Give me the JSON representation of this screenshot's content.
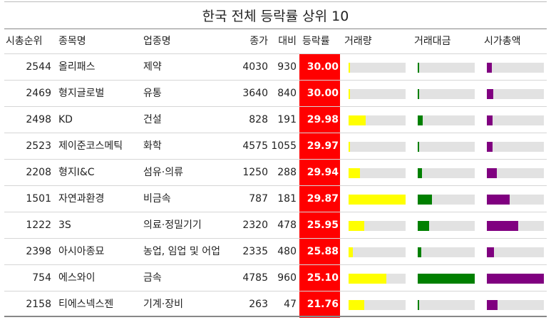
{
  "chart_data": {
    "type": "table",
    "title": "한국 전체 등락률 상위 10",
    "columns": [
      "시총순위",
      "종목명",
      "업종명",
      "종가",
      "대비",
      "등락률",
      "거래량",
      "거래대금",
      "시가총액"
    ],
    "rows": [
      {
        "rank": "2544",
        "name": "올리패스",
        "sector": "제약",
        "close": "4030",
        "diff": "930",
        "pct": "30.00",
        "volume": 0.02,
        "value": 0.02,
        "mcap": 0.09
      },
      {
        "rank": "2469",
        "name": "형지글로벌",
        "sector": "유통",
        "close": "3640",
        "diff": "840",
        "pct": "30.00",
        "volume": 0.02,
        "value": 0.01,
        "mcap": 0.11
      },
      {
        "rank": "2498",
        "name": "KD",
        "sector": "건설",
        "close": "828",
        "diff": "191",
        "pct": "29.98",
        "volume": 0.3,
        "value": 0.09,
        "mcap": 0.1
      },
      {
        "rank": "2523",
        "name": "제이준코스메틱",
        "sector": "화학",
        "close": "4575",
        "diff": "1055",
        "pct": "29.97",
        "volume": 0.02,
        "value": 0.02,
        "mcap": 0.1
      },
      {
        "rank": "2208",
        "name": "형지I&C",
        "sector": "섬유·의류",
        "close": "1250",
        "diff": "288",
        "pct": "29.94",
        "volume": 0.2,
        "value": 0.08,
        "mcap": 0.18
      },
      {
        "rank": "1501",
        "name": "자연과환경",
        "sector": "비금속",
        "close": "787",
        "diff": "181",
        "pct": "29.87",
        "volume": 1.0,
        "value": 0.25,
        "mcap": 0.4
      },
      {
        "rank": "1222",
        "name": "3S",
        "sector": "의료·정밀기기",
        "close": "2320",
        "diff": "478",
        "pct": "25.95",
        "volume": 0.27,
        "value": 0.2,
        "mcap": 0.55
      },
      {
        "rank": "2398",
        "name": "아시아종묘",
        "sector": "농업, 임업 및 어업",
        "close": "2335",
        "diff": "480",
        "pct": "25.88",
        "volume": 0.07,
        "value": 0.06,
        "mcap": 0.13
      },
      {
        "rank": "754",
        "name": "에스와이",
        "sector": "금속",
        "close": "4785",
        "diff": "960",
        "pct": "25.10",
        "volume": 0.66,
        "value": 1.0,
        "mcap": 1.0
      },
      {
        "rank": "2158",
        "name": "티에스넥스젠",
        "sector": "기계·장비",
        "close": "263",
        "diff": "47",
        "pct": "21.76",
        "volume": 0.28,
        "value": 0.02,
        "mcap": 0.19
      }
    ]
  },
  "colors": {
    "change_bg": "#ff0000",
    "volume_bar": "#ffff00",
    "value_bar": "#008000",
    "mcap_bar": "#800080",
    "bar_track": "#e2e2e2"
  }
}
